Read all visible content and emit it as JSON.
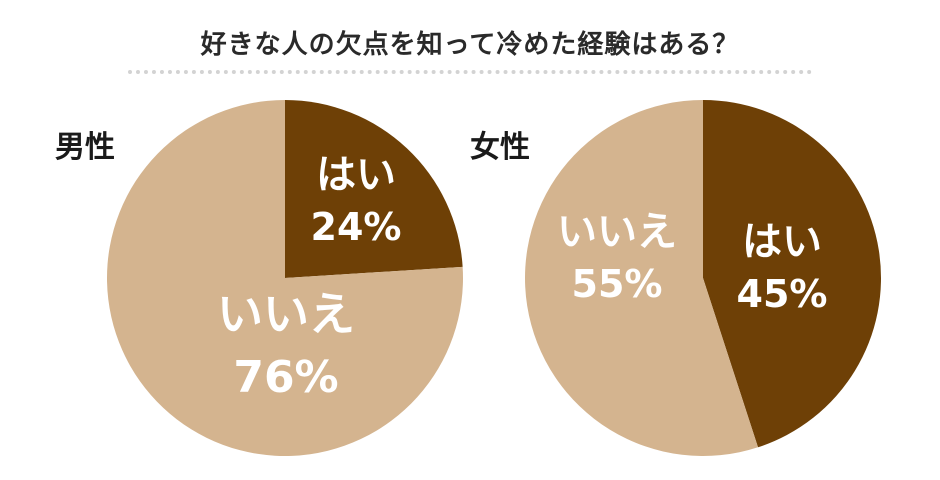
{
  "title": "好きな人の欠点を知って冷めた経験はある？",
  "colors": {
    "yes": "#6e4006",
    "no": "#d4b48f",
    "text": "#ffffff"
  },
  "chart_data": [
    {
      "type": "pie",
      "label": "男性",
      "slices": [
        {
          "name": "はい",
          "value": 24,
          "display": "24%",
          "color": "#6e4006"
        },
        {
          "name": "いいえ",
          "value": 76,
          "display": "76%",
          "color": "#d4b48f"
        }
      ]
    },
    {
      "type": "pie",
      "label": "女性",
      "slices": [
        {
          "name": "はい",
          "value": 45,
          "display": "45%",
          "color": "#6e4006"
        },
        {
          "name": "いいえ",
          "value": 55,
          "display": "55%",
          "color": "#d4b48f"
        }
      ]
    }
  ]
}
